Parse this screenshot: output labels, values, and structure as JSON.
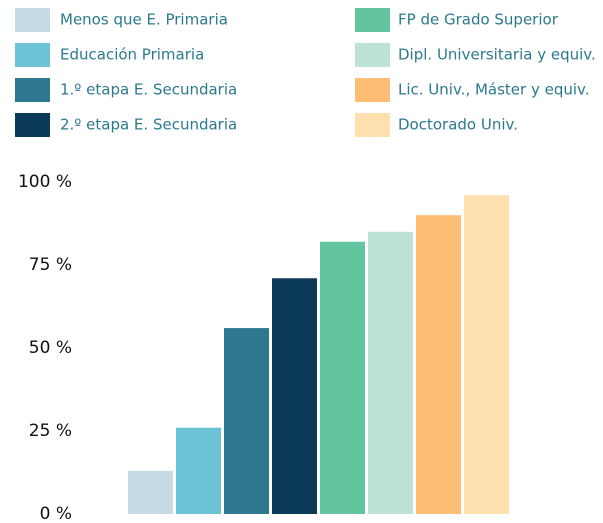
{
  "chart_data": {
    "type": "bar",
    "categories": [
      "Menos que E. Primaria",
      "Educación Primaria",
      "1.º etapa E. Secundaria",
      "2.º etapa E. Secundaria",
      "FP de Grado Superior",
      "Dipl. Universitaria y equiv.",
      "Lic. Univ., Máster y equiv.",
      "Doctorado Univ."
    ],
    "values": [
      13,
      26,
      56,
      71,
      82,
      85,
      90,
      96
    ],
    "colors": [
      "#c5dbe6",
      "#6bc3d5",
      "#2d788e",
      "#0b3a58",
      "#63c4a0",
      "#bde3d6",
      "#fdbd75",
      "#fde0ad"
    ],
    "ylim": [
      0,
      100
    ],
    "yticks": [
      {
        "value": 0,
        "label": "0 %"
      },
      {
        "value": 25,
        "label": "25 %"
      },
      {
        "value": 50,
        "label": "50 %"
      },
      {
        "value": 75,
        "label": "75 %"
      },
      {
        "value": 100,
        "label": "100 %"
      }
    ],
    "grid": false
  }
}
